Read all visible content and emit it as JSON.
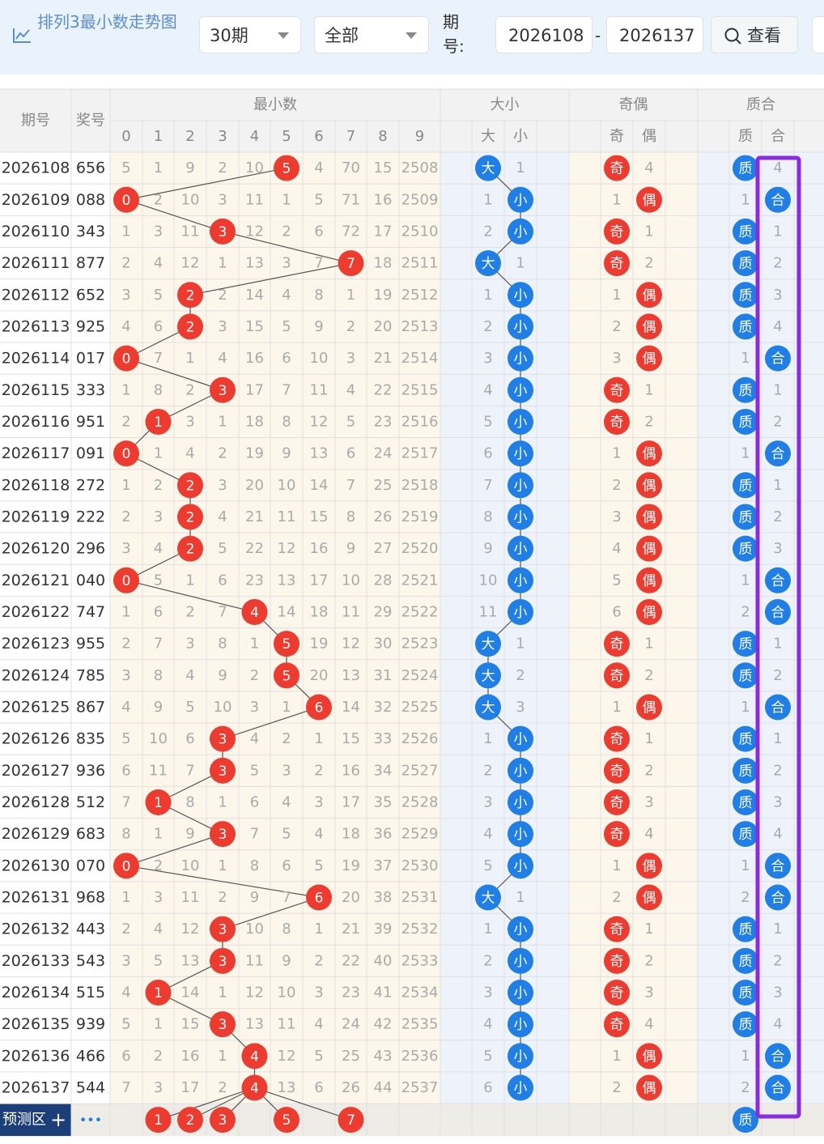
{
  "header": {
    "title": "排列3最小数走势图",
    "period": "30期",
    "scope": "全部",
    "issue_label": "期号:",
    "from": "2026108",
    "dash": "-",
    "to": "2026137",
    "search": "查看"
  },
  "table": {
    "columns": {
      "issue": "期号",
      "prize": "奖号",
      "min": "最小数",
      "digits": [
        0,
        1,
        2,
        3,
        4,
        5,
        6,
        7,
        8,
        9
      ],
      "size": "大小",
      "size_sub": [
        "大",
        "小"
      ],
      "parity": "奇偶",
      "parity_sub": [
        "奇",
        "偶"
      ],
      "prime": "质合",
      "prime_sub": [
        "质",
        "合"
      ]
    },
    "rows": [
      {
        "issue": "2026108",
        "prize": "656",
        "digits": [
          5,
          1,
          9,
          2,
          10,
          {
            "ball": 5
          },
          4,
          70,
          15,
          2508
        ],
        "size": [
          "大",
          1
        ],
        "parity": [
          "奇",
          4
        ],
        "prime": [
          "质",
          4
        ]
      },
      {
        "issue": "2026109",
        "prize": "088",
        "digits": [
          {
            "ball": 0
          },
          2,
          10,
          3,
          11,
          1,
          5,
          71,
          16,
          2509
        ],
        "size": [
          1,
          "小"
        ],
        "parity": [
          1,
          "偶"
        ],
        "prime": [
          1,
          "合"
        ]
      },
      {
        "issue": "2026110",
        "prize": "343",
        "digits": [
          1,
          3,
          11,
          {
            "ball": 3
          },
          12,
          2,
          6,
          72,
          17,
          2510
        ],
        "size": [
          2,
          "小"
        ],
        "parity": [
          "奇",
          1
        ],
        "prime": [
          "质",
          1
        ]
      },
      {
        "issue": "2026111",
        "prize": "877",
        "digits": [
          2,
          4,
          12,
          1,
          13,
          3,
          7,
          {
            "ball": 7
          },
          18,
          2511
        ],
        "size": [
          "大",
          1
        ],
        "parity": [
          "奇",
          2
        ],
        "prime": [
          "质",
          2
        ]
      },
      {
        "issue": "2026112",
        "prize": "652",
        "digits": [
          3,
          5,
          {
            "ball": 2
          },
          2,
          14,
          4,
          8,
          1,
          19,
          2512
        ],
        "size": [
          1,
          "小"
        ],
        "parity": [
          1,
          "偶"
        ],
        "prime": [
          "质",
          3
        ]
      },
      {
        "issue": "2026113",
        "prize": "925",
        "digits": [
          4,
          6,
          {
            "ball": 2
          },
          3,
          15,
          5,
          9,
          2,
          20,
          2513
        ],
        "size": [
          2,
          "小"
        ],
        "parity": [
          2,
          "偶"
        ],
        "prime": [
          "质",
          4
        ]
      },
      {
        "issue": "2026114",
        "prize": "017",
        "digits": [
          {
            "ball": 0
          },
          7,
          1,
          4,
          16,
          6,
          10,
          3,
          21,
          2514
        ],
        "size": [
          3,
          "小"
        ],
        "parity": [
          3,
          "偶"
        ],
        "prime": [
          1,
          "合"
        ]
      },
      {
        "issue": "2026115",
        "prize": "333",
        "digits": [
          1,
          8,
          2,
          {
            "ball": 3
          },
          17,
          7,
          11,
          4,
          22,
          2515
        ],
        "size": [
          4,
          "小"
        ],
        "parity": [
          "奇",
          1
        ],
        "prime": [
          "质",
          1
        ]
      },
      {
        "issue": "2026116",
        "prize": "951",
        "digits": [
          2,
          {
            "ball": 1
          },
          3,
          1,
          18,
          8,
          12,
          5,
          23,
          2516
        ],
        "size": [
          5,
          "小"
        ],
        "parity": [
          "奇",
          2
        ],
        "prime": [
          "质",
          2
        ]
      },
      {
        "issue": "2026117",
        "prize": "091",
        "digits": [
          {
            "ball": 0
          },
          1,
          4,
          2,
          19,
          9,
          13,
          6,
          24,
          2517
        ],
        "size": [
          6,
          "小"
        ],
        "parity": [
          1,
          "偶"
        ],
        "prime": [
          1,
          "合"
        ]
      },
      {
        "issue": "2026118",
        "prize": "272",
        "digits": [
          1,
          2,
          {
            "ball": 2
          },
          3,
          20,
          10,
          14,
          7,
          25,
          2518
        ],
        "size": [
          7,
          "小"
        ],
        "parity": [
          2,
          "偶"
        ],
        "prime": [
          "质",
          1
        ]
      },
      {
        "issue": "2026119",
        "prize": "222",
        "digits": [
          2,
          3,
          {
            "ball": 2
          },
          4,
          21,
          11,
          15,
          8,
          26,
          2519
        ],
        "size": [
          8,
          "小"
        ],
        "parity": [
          3,
          "偶"
        ],
        "prime": [
          "质",
          2
        ]
      },
      {
        "issue": "2026120",
        "prize": "296",
        "digits": [
          3,
          4,
          {
            "ball": 2
          },
          5,
          22,
          12,
          16,
          9,
          27,
          2520
        ],
        "size": [
          9,
          "小"
        ],
        "parity": [
          4,
          "偶"
        ],
        "prime": [
          "质",
          3
        ]
      },
      {
        "issue": "2026121",
        "prize": "040",
        "digits": [
          {
            "ball": 0
          },
          5,
          1,
          6,
          23,
          13,
          17,
          10,
          28,
          2521
        ],
        "size": [
          10,
          "小"
        ],
        "parity": [
          5,
          "偶"
        ],
        "prime": [
          1,
          "合"
        ]
      },
      {
        "issue": "2026122",
        "prize": "747",
        "digits": [
          1,
          6,
          2,
          7,
          {
            "ball": 4
          },
          14,
          18,
          11,
          29,
          2522
        ],
        "size": [
          11,
          "小"
        ],
        "parity": [
          6,
          "偶"
        ],
        "prime": [
          2,
          "合"
        ]
      },
      {
        "issue": "2026123",
        "prize": "955",
        "digits": [
          2,
          7,
          3,
          8,
          1,
          {
            "ball": 5
          },
          19,
          12,
          30,
          2523
        ],
        "size": [
          "大",
          1
        ],
        "parity": [
          "奇",
          1
        ],
        "prime": [
          "质",
          1
        ]
      },
      {
        "issue": "2026124",
        "prize": "785",
        "digits": [
          3,
          8,
          4,
          9,
          2,
          {
            "ball": 5
          },
          20,
          13,
          31,
          2524
        ],
        "size": [
          "大",
          2
        ],
        "parity": [
          "奇",
          2
        ],
        "prime": [
          "质",
          2
        ]
      },
      {
        "issue": "2026125",
        "prize": "867",
        "digits": [
          4,
          9,
          5,
          10,
          3,
          1,
          {
            "ball": 6
          },
          14,
          32,
          2525
        ],
        "size": [
          "大",
          3
        ],
        "parity": [
          1,
          "偶"
        ],
        "prime": [
          1,
          "合"
        ]
      },
      {
        "issue": "2026126",
        "prize": "835",
        "digits": [
          5,
          10,
          6,
          {
            "ball": 3
          },
          4,
          2,
          1,
          15,
          33,
          2526
        ],
        "size": [
          1,
          "小"
        ],
        "parity": [
          "奇",
          1
        ],
        "prime": [
          "质",
          1
        ]
      },
      {
        "issue": "2026127",
        "prize": "936",
        "digits": [
          6,
          11,
          7,
          {
            "ball": 3
          },
          5,
          3,
          2,
          16,
          34,
          2527
        ],
        "size": [
          2,
          "小"
        ],
        "parity": [
          "奇",
          2
        ],
        "prime": [
          "质",
          2
        ]
      },
      {
        "issue": "2026128",
        "prize": "512",
        "digits": [
          7,
          {
            "ball": 1
          },
          8,
          1,
          6,
          4,
          3,
          17,
          35,
          2528
        ],
        "size": [
          3,
          "小"
        ],
        "parity": [
          "奇",
          3
        ],
        "prime": [
          "质",
          3
        ]
      },
      {
        "issue": "2026129",
        "prize": "683",
        "digits": [
          8,
          1,
          9,
          {
            "ball": 3
          },
          7,
          5,
          4,
          18,
          36,
          2529
        ],
        "size": [
          4,
          "小"
        ],
        "parity": [
          "奇",
          4
        ],
        "prime": [
          "质",
          4
        ]
      },
      {
        "issue": "2026130",
        "prize": "070",
        "digits": [
          {
            "ball": 0
          },
          2,
          10,
          1,
          8,
          6,
          5,
          19,
          37,
          2530
        ],
        "size": [
          5,
          "小"
        ],
        "parity": [
          1,
          "偶"
        ],
        "prime": [
          1,
          "合"
        ]
      },
      {
        "issue": "2026131",
        "prize": "968",
        "digits": [
          1,
          3,
          11,
          2,
          9,
          7,
          {
            "ball": 6
          },
          20,
          38,
          2531
        ],
        "size": [
          "大",
          1
        ],
        "parity": [
          2,
          "偶"
        ],
        "prime": [
          2,
          "合"
        ]
      },
      {
        "issue": "2026132",
        "prize": "443",
        "digits": [
          2,
          4,
          12,
          {
            "ball": 3
          },
          10,
          8,
          1,
          21,
          39,
          2532
        ],
        "size": [
          1,
          "小"
        ],
        "parity": [
          "奇",
          1
        ],
        "prime": [
          "质",
          1
        ]
      },
      {
        "issue": "2026133",
        "prize": "543",
        "digits": [
          3,
          5,
          13,
          {
            "ball": 3
          },
          11,
          9,
          2,
          22,
          40,
          2533
        ],
        "size": [
          2,
          "小"
        ],
        "parity": [
          "奇",
          2
        ],
        "prime": [
          "质",
          2
        ]
      },
      {
        "issue": "2026134",
        "prize": "515",
        "digits": [
          4,
          {
            "ball": 1
          },
          14,
          1,
          12,
          10,
          3,
          23,
          41,
          2534
        ],
        "size": [
          3,
          "小"
        ],
        "parity": [
          "奇",
          3
        ],
        "prime": [
          "质",
          3
        ]
      },
      {
        "issue": "2026135",
        "prize": "939",
        "digits": [
          5,
          1,
          15,
          {
            "ball": 3
          },
          13,
          11,
          4,
          24,
          42,
          2535
        ],
        "size": [
          4,
          "小"
        ],
        "parity": [
          "奇",
          4
        ],
        "prime": [
          "质",
          4
        ]
      },
      {
        "issue": "2026136",
        "prize": "466",
        "digits": [
          6,
          2,
          16,
          1,
          {
            "ball": 4
          },
          12,
          5,
          25,
          43,
          2536
        ],
        "size": [
          5,
          "小"
        ],
        "parity": [
          1,
          "偶"
        ],
        "prime": [
          1,
          "合"
        ]
      },
      {
        "issue": "2026137",
        "prize": "544",
        "digits": [
          7,
          3,
          17,
          2,
          {
            "ball": 4
          },
          13,
          6,
          26,
          44,
          2537
        ],
        "size": [
          6,
          "小"
        ],
        "parity": [
          2,
          "偶"
        ],
        "prime": [
          2,
          "合"
        ]
      }
    ],
    "forecast": {
      "label": "预测区",
      "plus": "+",
      "more": "•••",
      "balls": [
        1,
        2,
        3,
        5,
        7
      ],
      "prime": "质"
    }
  }
}
